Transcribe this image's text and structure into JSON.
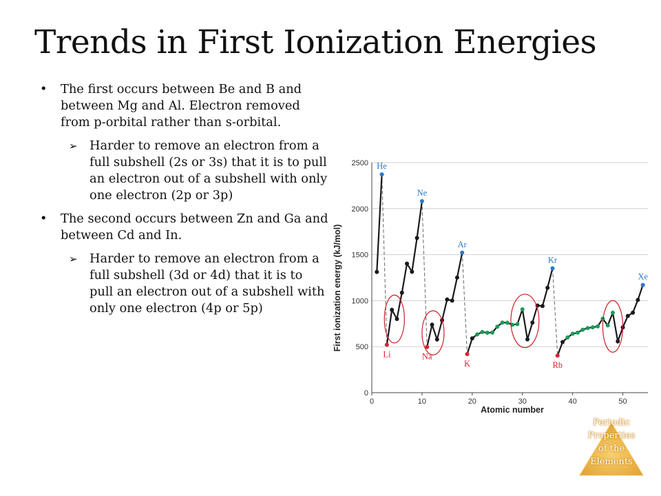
{
  "slide": {
    "title": "Trends in First Ionization Energies"
  },
  "bullets": [
    {
      "text": "The first occurs between Be and B and between Mg and Al. Electron removed from p-orbital rather than s-orbital.",
      "sub": "Harder to remove an electron from a full subshell (2s or 3s) that it is to pull an electron out of a subshell with only one electron (2p or 3p)"
    },
    {
      "text": "The second occurs between Zn and Ga and between Cd and In.",
      "sub": "Harder to remove an electron from a full subshell (3d or 4d) that it is to pull an electron out of a subshell with only one electron (4p or 5p)"
    }
  ],
  "badge": {
    "lines": [
      "Periodic",
      "Properties",
      "of the",
      "Elements"
    ]
  },
  "colors": {
    "noble_gas": "#2a78c8",
    "alkali": "#e02030",
    "transition": "#1a9c5a",
    "line": "#1a1a1a",
    "annotation_circle": "#c81e28",
    "badge": "#f0b030"
  },
  "chart_data": {
    "type": "line",
    "xlabel": "Atomic number",
    "ylabel": "First ionization energy (kJ/mol)",
    "xlim": [
      0,
      55
    ],
    "ylim": [
      0,
      2500
    ],
    "x_ticks": [
      0,
      10,
      20,
      30,
      40,
      50
    ],
    "y_ticks": [
      0,
      500,
      1000,
      1500,
      2000,
      2500
    ],
    "grid": "horizontal",
    "series": [
      {
        "x": [
          1,
          2
        ],
        "values": [
          1312,
          2372
        ]
      },
      {
        "x": [
          3,
          4,
          5,
          6,
          7,
          8,
          9,
          10
        ],
        "values": [
          520,
          900,
          801,
          1086,
          1402,
          1314,
          1681,
          2081
        ]
      },
      {
        "x": [
          11,
          12,
          13,
          14,
          15,
          16,
          17,
          18
        ],
        "values": [
          496,
          738,
          578,
          787,
          1012,
          1000,
          1251,
          1521
        ]
      },
      {
        "x": [
          19,
          20,
          21,
          22,
          23,
          24,
          25,
          26,
          27,
          28,
          29,
          30,
          31,
          32,
          33,
          34,
          35,
          36
        ],
        "values": [
          419,
          590,
          633,
          659,
          651,
          653,
          717,
          762,
          760,
          737,
          745,
          906,
          579,
          762,
          947,
          941,
          1140,
          1351
        ]
      },
      {
        "x": [
          37,
          38,
          39,
          40,
          41,
          42,
          43,
          44,
          45,
          46,
          47,
          48,
          49,
          50,
          51,
          52,
          53,
          54
        ],
        "values": [
          403,
          550,
          600,
          640,
          652,
          684,
          702,
          710,
          720,
          804,
          731,
          868,
          558,
          709,
          834,
          869,
          1008,
          1170
        ]
      }
    ],
    "points_colored": {
      "noble_gas": [
        2,
        10,
        18,
        36,
        54
      ],
      "alkali": [
        3,
        11,
        19,
        37
      ],
      "transition": [
        21,
        22,
        23,
        24,
        25,
        26,
        27,
        28,
        29,
        30,
        39,
        40,
        41,
        42,
        43,
        44,
        45,
        46,
        47,
        48
      ]
    },
    "labels": [
      {
        "text": "He",
        "x": 2,
        "y": 2372
      },
      {
        "text": "Ne",
        "x": 10,
        "y": 2081
      },
      {
        "text": "Ar",
        "x": 18,
        "y": 1521
      },
      {
        "text": "Kr",
        "x": 36,
        "y": 1351
      },
      {
        "text": "Xe",
        "x": 54,
        "y": 1170
      },
      {
        "text": "Li",
        "x": 3,
        "y": 520
      },
      {
        "text": "Na",
        "x": 11,
        "y": 496
      },
      {
        "text": "K",
        "x": 19,
        "y": 419
      },
      {
        "text": "Rb",
        "x": 37,
        "y": 403
      }
    ],
    "dashed_links": [
      [
        2,
        3
      ],
      [
        10,
        11
      ],
      [
        18,
        19
      ],
      [
        36,
        37
      ]
    ],
    "annotation_circles": [
      {
        "cx": 4.5,
        "cy": 800,
        "rx": 2,
        "ry": 260
      },
      {
        "cx": 12.2,
        "cy": 650,
        "rx": 2.2,
        "ry": 240
      },
      {
        "cx": 30.5,
        "cy": 780,
        "rx": 2.8,
        "ry": 290
      },
      {
        "cx": 48,
        "cy": 720,
        "rx": 2,
        "ry": 280
      }
    ]
  }
}
